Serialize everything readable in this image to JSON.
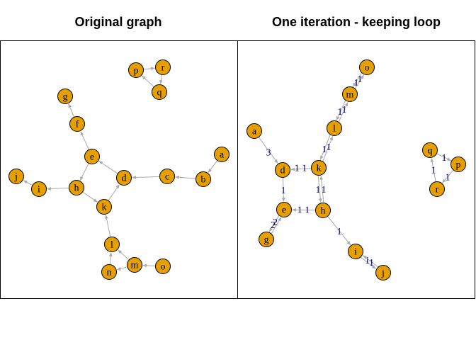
{
  "panels": [
    {
      "title": "Original graph",
      "vertices": [
        "a",
        "b",
        "c",
        "d",
        "e",
        "f",
        "g",
        "h",
        "i",
        "j",
        "k",
        "l",
        "m",
        "n",
        "o",
        "p",
        "q",
        "r"
      ],
      "edges": [
        {
          "from": "a",
          "to": "b"
        },
        {
          "from": "b",
          "to": "c"
        },
        {
          "from": "c",
          "to": "d"
        },
        {
          "from": "d",
          "to": "e"
        },
        {
          "from": "e",
          "to": "f"
        },
        {
          "from": "f",
          "to": "g"
        },
        {
          "from": "e",
          "to": "h"
        },
        {
          "from": "h",
          "to": "i"
        },
        {
          "from": "i",
          "to": "j"
        },
        {
          "from": "h",
          "to": "k"
        },
        {
          "from": "k",
          "to": "d"
        },
        {
          "from": "l",
          "to": "k"
        },
        {
          "from": "m",
          "to": "l"
        },
        {
          "from": "m",
          "to": "n"
        },
        {
          "from": "n",
          "to": "l"
        },
        {
          "from": "o",
          "to": "m"
        },
        {
          "from": "p",
          "to": "r"
        },
        {
          "from": "r",
          "to": "q"
        },
        {
          "from": "q",
          "to": "p"
        }
      ]
    },
    {
      "title": "One iteration - keeping loop",
      "vertices": [
        "a",
        "d",
        "e",
        "g",
        "h",
        "i",
        "j",
        "k",
        "l",
        "m",
        "o",
        "p",
        "q",
        "r"
      ],
      "edges": [
        {
          "from": "a",
          "to": "d",
          "label": "3"
        },
        {
          "from": "k",
          "to": "d",
          "label": "1 1"
        },
        {
          "from": "d",
          "to": "e",
          "label": "1"
        },
        {
          "from": "h",
          "to": "e",
          "label": "1 1"
        },
        {
          "from": "h",
          "to": "k",
          "label": "1"
        },
        {
          "from": "k",
          "to": "h",
          "label": "1"
        },
        {
          "from": "e",
          "to": "g",
          "label": "2"
        },
        {
          "from": "g",
          "to": "e",
          "label": "2"
        },
        {
          "from": "l",
          "to": "k",
          "label": "1"
        },
        {
          "from": "k",
          "to": "l",
          "label": "1"
        },
        {
          "from": "m",
          "to": "l",
          "label": "1"
        },
        {
          "from": "l",
          "to": "m",
          "label": "1"
        },
        {
          "from": "o",
          "to": "m",
          "label": "1"
        },
        {
          "from": "m",
          "to": "o",
          "label": "1"
        },
        {
          "from": "h",
          "to": "i",
          "label": "1"
        },
        {
          "from": "i",
          "to": "j",
          "label": "1"
        },
        {
          "from": "j",
          "to": "i",
          "label": "1"
        },
        {
          "from": "q",
          "to": "p",
          "label": "1"
        },
        {
          "from": "p",
          "to": "r",
          "label": "1"
        },
        {
          "from": "r",
          "to": "q",
          "label": "1"
        }
      ]
    }
  ]
}
